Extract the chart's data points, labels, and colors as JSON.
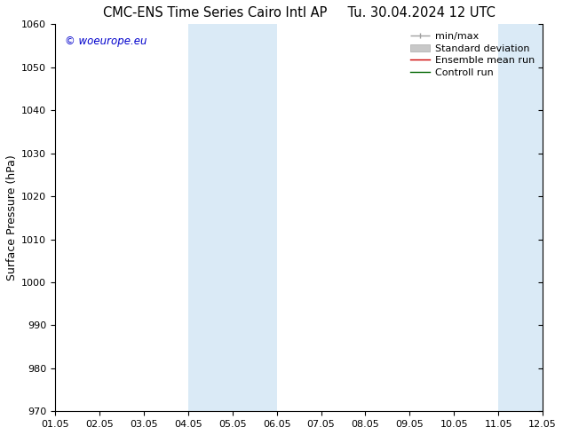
{
  "title_left": "CMC-ENS Time Series Cairo Intl AP",
  "title_right": "Tu. 30.04.2024 12 UTC",
  "ylabel": "Surface Pressure (hPa)",
  "ylim": [
    970,
    1060
  ],
  "yticks": [
    970,
    980,
    990,
    1000,
    1010,
    1020,
    1030,
    1040,
    1050,
    1060
  ],
  "xlim_start": 0,
  "xlim_end": 11,
  "xtick_labels": [
    "01.05",
    "02.05",
    "03.05",
    "04.05",
    "05.05",
    "06.05",
    "07.05",
    "08.05",
    "09.05",
    "10.05",
    "11.05",
    "12.05"
  ],
  "xtick_positions": [
    0,
    1,
    2,
    3,
    4,
    5,
    6,
    7,
    8,
    9,
    10,
    11
  ],
  "shaded_bands": [
    {
      "x_start": 3,
      "x_end": 5,
      "color": "#daeaf6"
    },
    {
      "x_start": 10,
      "x_end": 11,
      "color": "#daeaf6"
    }
  ],
  "legend_items": [
    {
      "label": "min/max",
      "color": "#a0a0a0",
      "lw": 1.0
    },
    {
      "label": "Standard deviation",
      "color": "#c8c8c8",
      "lw": 6
    },
    {
      "label": "Ensemble mean run",
      "color": "#cc0000",
      "lw": 1.0
    },
    {
      "label": "Controll run",
      "color": "#006600",
      "lw": 1.0
    }
  ],
  "watermark": "© woeurope.eu",
  "watermark_color": "#0000cc",
  "background_color": "#ffffff",
  "plot_bg_color": "#ffffff",
  "title_fontsize": 10.5,
  "label_fontsize": 9,
  "tick_fontsize": 8,
  "legend_fontsize": 8
}
